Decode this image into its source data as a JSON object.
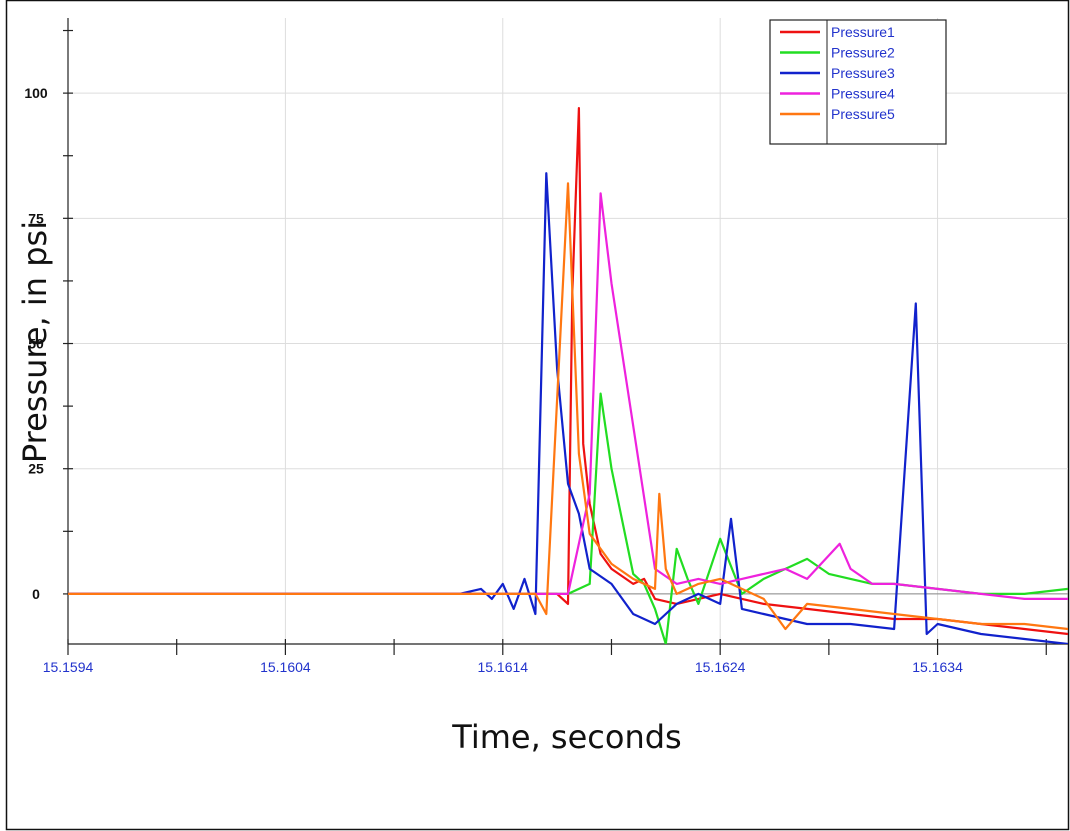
{
  "chart_data": {
    "type": "line",
    "title": "",
    "xlabel": "Time, seconds",
    "ylabel": "Pressure, in psi",
    "xlim": [
      15.1594,
      15.164
    ],
    "ylim": [
      -10,
      115
    ],
    "x_ticks": [
      "15.1594",
      "15.1604",
      "15.1614",
      "15.1624",
      "15.1634"
    ],
    "x_tick_values": [
      15.1594,
      15.1604,
      15.1614,
      15.1624,
      15.1634
    ],
    "y_ticks": [
      "0",
      "25",
      "50",
      "75",
      "100"
    ],
    "y_tick_values": [
      0,
      25,
      50,
      75,
      100
    ],
    "grid": true,
    "legend_position": "top-right",
    "series": [
      {
        "name": "Pressure1",
        "color": "#ee1111",
        "x": [
          15.1594,
          15.1613,
          15.16165,
          15.1617,
          15.16172,
          15.16175,
          15.16177,
          15.1618,
          15.16185,
          15.1619,
          15.162,
          15.16205,
          15.1621,
          15.1622,
          15.1624,
          15.1626,
          15.1628,
          15.163,
          15.1632,
          15.1634,
          15.1636,
          15.1638,
          15.164
        ],
        "y": [
          0,
          0,
          0,
          -2,
          60,
          97,
          30,
          18,
          8,
          5,
          2,
          3,
          -1,
          -2,
          0,
          -2,
          -3,
          -4,
          -5,
          -5,
          -6,
          -7,
          -8
        ]
      },
      {
        "name": "Pressure2",
        "color": "#22dd22",
        "x": [
          15.1594,
          15.1613,
          15.1617,
          15.1618,
          15.16185,
          15.1619,
          15.162,
          15.16205,
          15.1621,
          15.16215,
          15.1622,
          15.16225,
          15.1623,
          15.1624,
          15.1625,
          15.1626,
          15.1627,
          15.1628,
          15.1629,
          15.163,
          15.1631,
          15.1632,
          15.1634,
          15.1636,
          15.1638,
          15.164
        ],
        "y": [
          0,
          0,
          0,
          2,
          40,
          25,
          4,
          2,
          -3,
          -10,
          9,
          3,
          -2,
          11,
          0,
          3,
          5,
          7,
          4,
          3,
          2,
          2,
          1,
          0,
          0,
          1
        ]
      },
      {
        "name": "Pressure3",
        "color": "#1122cc",
        "x": [
          15.1594,
          15.1612,
          15.1613,
          15.16135,
          15.1614,
          15.16145,
          15.1615,
          15.16155,
          15.1616,
          15.16165,
          15.1617,
          15.16175,
          15.1618,
          15.1619,
          15.162,
          15.1621,
          15.1622,
          15.1623,
          15.1624,
          15.16245,
          15.1625,
          15.1626,
          15.1628,
          15.163,
          15.1632,
          15.1633,
          15.16335,
          15.1634,
          15.1636,
          15.1638,
          15.164
        ],
        "y": [
          0,
          0,
          1,
          -1,
          2,
          -3,
          3,
          -4,
          84,
          45,
          22,
          16,
          5,
          2,
          -4,
          -6,
          -2,
          0,
          -2,
          15,
          -3,
          -4,
          -6,
          -6,
          -7,
          58,
          -8,
          -6,
          -8,
          -9,
          -10
        ]
      },
      {
        "name": "Pressure4",
        "color": "#ee22dd",
        "x": [
          15.1594,
          15.1613,
          15.1617,
          15.1618,
          15.16185,
          15.1619,
          15.1621,
          15.1622,
          15.1623,
          15.1624,
          15.1625,
          15.1626,
          15.1627,
          15.1628,
          15.16295,
          15.163,
          15.1631,
          15.1632,
          15.1634,
          15.1636,
          15.1638,
          15.164
        ],
        "y": [
          0,
          0,
          0,
          20,
          80,
          62,
          5,
          2,
          3,
          2,
          3,
          4,
          5,
          3,
          10,
          5,
          2,
          2,
          1,
          0,
          -1,
          -1
        ]
      },
      {
        "name": "Pressure5",
        "color": "#ff7711",
        "x": [
          15.1594,
          15.1615,
          15.16155,
          15.1616,
          15.1617,
          15.16175,
          15.1618,
          15.1619,
          15.162,
          15.1621,
          15.16212,
          15.16215,
          15.1622,
          15.1623,
          15.1624,
          15.1626,
          15.1627,
          15.1628,
          15.163,
          15.1632,
          15.1634,
          15.1636,
          15.1638,
          15.164
        ],
        "y": [
          0,
          0,
          0,
          -4,
          82,
          28,
          12,
          6,
          3,
          1,
          20,
          5,
          0,
          2,
          3,
          -1,
          -7,
          -2,
          -3,
          -4,
          -5,
          -6,
          -6,
          -7
        ]
      }
    ]
  }
}
